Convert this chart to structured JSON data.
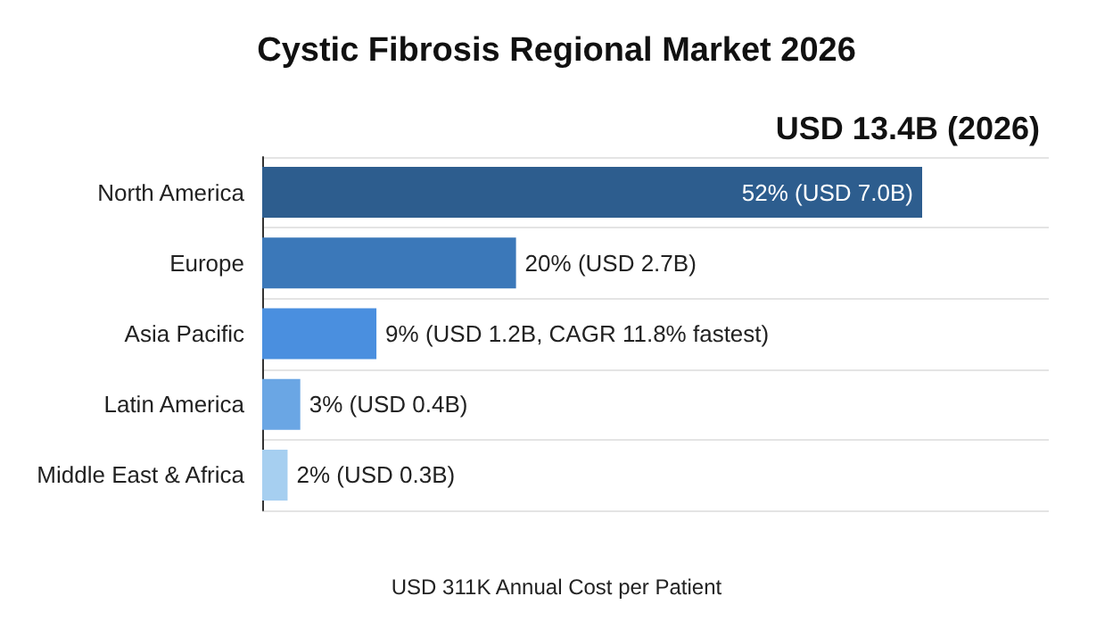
{
  "chart_data": {
    "type": "bar",
    "orientation": "horizontal",
    "title": "Cystic Fibrosis Regional Market 2026",
    "subtitle": "USD 13.4B (2026)",
    "categories": [
      "North America",
      "Europe",
      "Asia Pacific",
      "Latin America",
      "Middle East & Africa"
    ],
    "values": [
      52,
      20,
      9,
      3,
      2
    ],
    "value_labels": [
      "52% (USD 7.0B)",
      "20% (USD 2.7B)",
      "9% (USD 1.2B, CAGR 11.8% fastest)",
      "3% (USD 0.4B)",
      "2% (USD 0.3B)"
    ],
    "colors": [
      "#2d5d8e",
      "#3b78b9",
      "#4a8fdf",
      "#6aa6e4",
      "#a6cff0"
    ],
    "grid": "y",
    "annotations": [
      "USD 311K Annual Cost per Patient"
    ]
  }
}
